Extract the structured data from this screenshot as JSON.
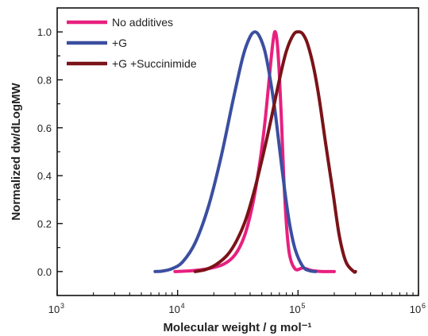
{
  "chart_data": {
    "type": "line",
    "title": "",
    "xlabel": "Molecular weight / g mol⁻¹",
    "ylabel": "Normalized dw/dLogMW",
    "xscale": "log",
    "xlim": [
      1000,
      1000000
    ],
    "ylim": [
      -0.1,
      1.1
    ],
    "x_ticks": [
      {
        "value": 1000,
        "label": "10",
        "exp": "3"
      },
      {
        "value": 10000,
        "label": "10",
        "exp": "4"
      },
      {
        "value": 100000,
        "label": "10",
        "exp": "5"
      },
      {
        "value": 1000000,
        "label": "10",
        "exp": "6"
      }
    ],
    "y_ticks": [
      {
        "value": 0.0,
        "label": "0.0"
      },
      {
        "value": 0.2,
        "label": "0.2"
      },
      {
        "value": 0.4,
        "label": "0.4"
      },
      {
        "value": 0.6,
        "label": "0.6"
      },
      {
        "value": 0.8,
        "label": "0.8"
      },
      {
        "value": 1.0,
        "label": "1.0"
      }
    ],
    "legend_position": "top-left",
    "grid": false,
    "series": [
      {
        "name": "No additives",
        "color": "#e8207f",
        "x": [
          9500,
          13000,
          18000,
          24000,
          30000,
          36000,
          42000,
          48000,
          53000,
          57000,
          61000,
          64000,
          67000,
          70000,
          73000,
          76000,
          80000,
          85000,
          95000,
          110000,
          130000,
          160000,
          200000
        ],
        "y": [
          0.0,
          0.003,
          0.012,
          0.03,
          0.07,
          0.15,
          0.28,
          0.45,
          0.62,
          0.78,
          0.93,
          1.0,
          0.96,
          0.82,
          0.62,
          0.4,
          0.2,
          0.07,
          0.01,
          0.015,
          0.004,
          0.0,
          0.0
        ]
      },
      {
        "name": "+G",
        "color": "#3b4fa0",
        "x": [
          6500,
          7500,
          9000,
          11000,
          14000,
          18000,
          23000,
          29000,
          35000,
          40000,
          44000,
          48000,
          53000,
          58000,
          64000,
          70000,
          77000,
          85000,
          95000,
          110000,
          125000,
          140000
        ],
        "y": [
          0.0,
          0.002,
          0.012,
          0.04,
          0.12,
          0.27,
          0.48,
          0.72,
          0.9,
          0.98,
          1.0,
          0.98,
          0.92,
          0.82,
          0.68,
          0.52,
          0.35,
          0.2,
          0.09,
          0.02,
          0.003,
          0.0
        ]
      },
      {
        "name": "+G +Succinimide",
        "color": "#7a1318",
        "x": [
          14000,
          17000,
          21000,
          26000,
          31000,
          37000,
          44000,
          52000,
          60000,
          70000,
          80000,
          92000,
          102000,
          110000,
          120000,
          135000,
          150000,
          170000,
          195000,
          220000,
          250000,
          290000,
          300000
        ],
        "y": [
          0.0,
          0.008,
          0.03,
          0.07,
          0.13,
          0.22,
          0.35,
          0.5,
          0.64,
          0.8,
          0.92,
          0.99,
          1.0,
          0.99,
          0.95,
          0.85,
          0.72,
          0.53,
          0.33,
          0.15,
          0.04,
          0.0,
          0.0
        ]
      }
    ]
  }
}
